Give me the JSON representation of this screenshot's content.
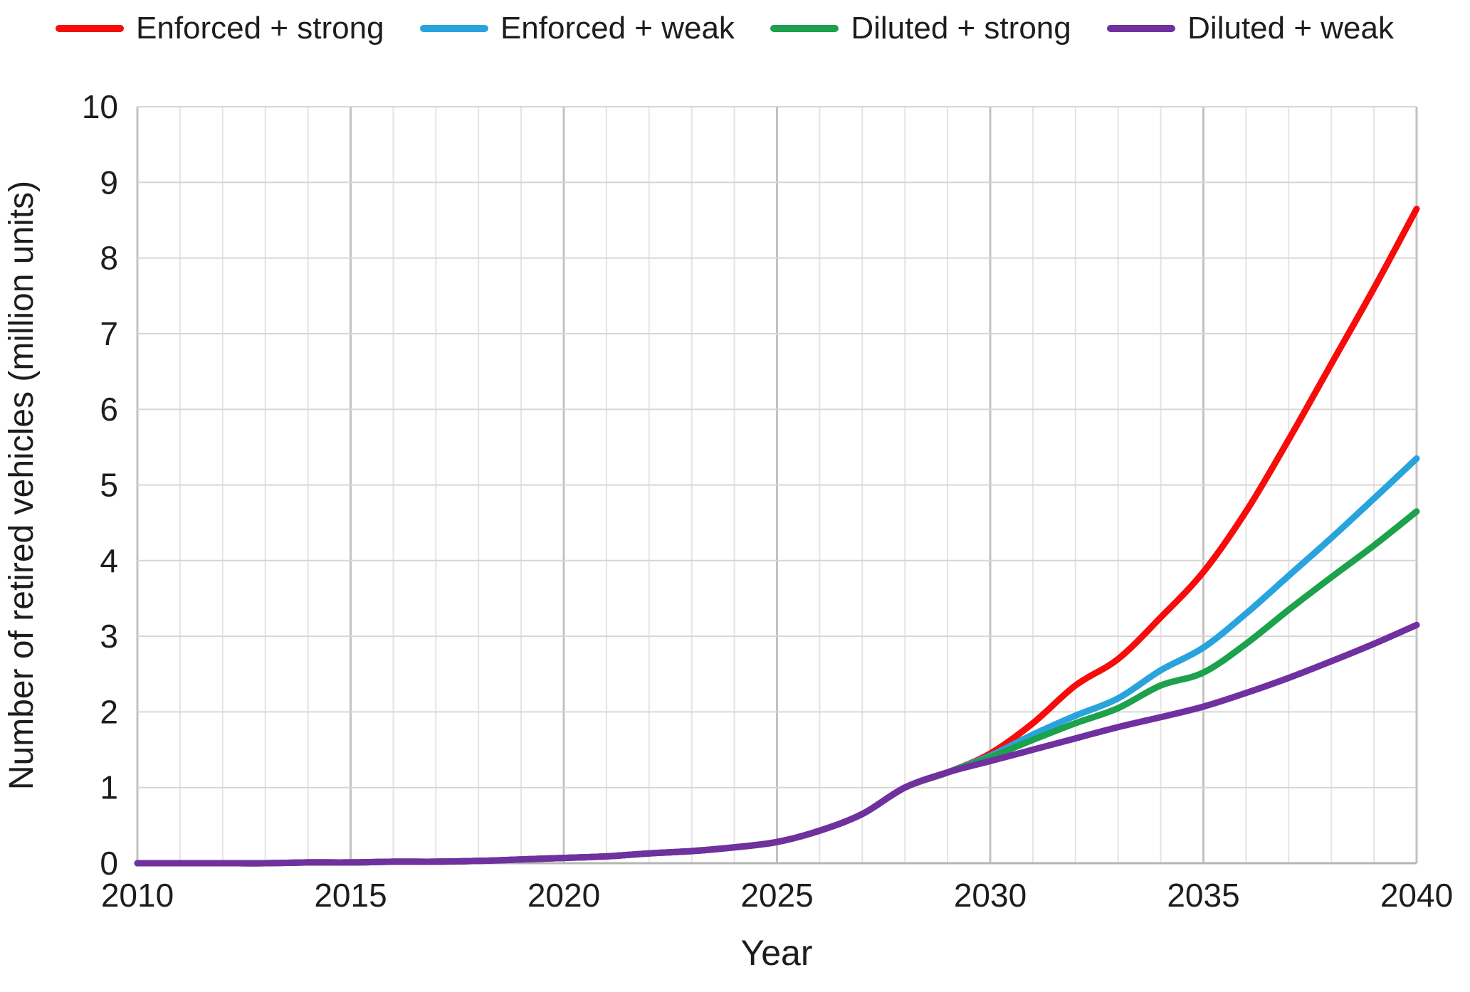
{
  "chart_data": {
    "type": "line",
    "title": "",
    "xlabel": "Year",
    "ylabel": "Number of retired vehicles (million units)",
    "xlim": [
      2010,
      2040
    ],
    "ylim": [
      0,
      10
    ],
    "x_ticks": [
      2010,
      2015,
      2020,
      2025,
      2030,
      2035,
      2040
    ],
    "y_ticks": [
      0,
      1,
      2,
      3,
      4,
      5,
      6,
      7,
      8,
      9,
      10
    ],
    "grid": {
      "horizontal": "every 1 unit",
      "vertical": "minor every year, darker major every 5 years"
    },
    "legend_position": "top",
    "x": [
      2010,
      2011,
      2012,
      2013,
      2014,
      2015,
      2016,
      2017,
      2018,
      2019,
      2020,
      2021,
      2022,
      2023,
      2024,
      2025,
      2026,
      2027,
      2028,
      2029,
      2030,
      2031,
      2032,
      2033,
      2034,
      2035,
      2036,
      2037,
      2038,
      2039,
      2040
    ],
    "series": [
      {
        "name": "Enforced + strong",
        "color": "#f80b0b",
        "values": [
          0,
          0,
          0,
          0,
          0.01,
          0.01,
          0.02,
          0.02,
          0.03,
          0.05,
          0.07,
          0.09,
          0.13,
          0.16,
          0.21,
          0.28,
          0.43,
          0.65,
          1.0,
          1.2,
          1.45,
          1.85,
          2.35,
          2.7,
          3.25,
          3.85,
          4.65,
          5.6,
          6.6,
          7.6,
          8.65
        ]
      },
      {
        "name": "Enforced + weak",
        "color": "#29a3dc",
        "values": [
          0,
          0,
          0,
          0,
          0.01,
          0.01,
          0.02,
          0.02,
          0.03,
          0.05,
          0.07,
          0.09,
          0.13,
          0.16,
          0.21,
          0.28,
          0.43,
          0.65,
          1.0,
          1.2,
          1.42,
          1.7,
          1.95,
          2.18,
          2.55,
          2.85,
          3.3,
          3.8,
          4.3,
          4.82,
          5.35
        ]
      },
      {
        "name": "Diluted + strong",
        "color": "#1ca14c",
        "values": [
          0,
          0,
          0,
          0,
          0.01,
          0.01,
          0.02,
          0.02,
          0.03,
          0.05,
          0.07,
          0.09,
          0.13,
          0.16,
          0.21,
          0.28,
          0.43,
          0.65,
          1.0,
          1.2,
          1.4,
          1.63,
          1.85,
          2.05,
          2.35,
          2.52,
          2.9,
          3.35,
          3.78,
          4.2,
          4.65
        ]
      },
      {
        "name": "Diluted + weak",
        "color": "#7030a0",
        "values": [
          0,
          0,
          0,
          0,
          0.01,
          0.01,
          0.02,
          0.02,
          0.03,
          0.05,
          0.07,
          0.09,
          0.13,
          0.16,
          0.21,
          0.28,
          0.43,
          0.65,
          1.0,
          1.2,
          1.35,
          1.5,
          1.65,
          1.8,
          1.93,
          2.07,
          2.25,
          2.45,
          2.67,
          2.9,
          3.15
        ]
      }
    ]
  },
  "style_colors": {
    "minor_grid": "#e4e4e4",
    "major_grid": "#c2c2c2",
    "h_grid": "#d6d6d6",
    "axis_line": "#b5b5b5",
    "tick_text": "#1d1d1d"
  }
}
